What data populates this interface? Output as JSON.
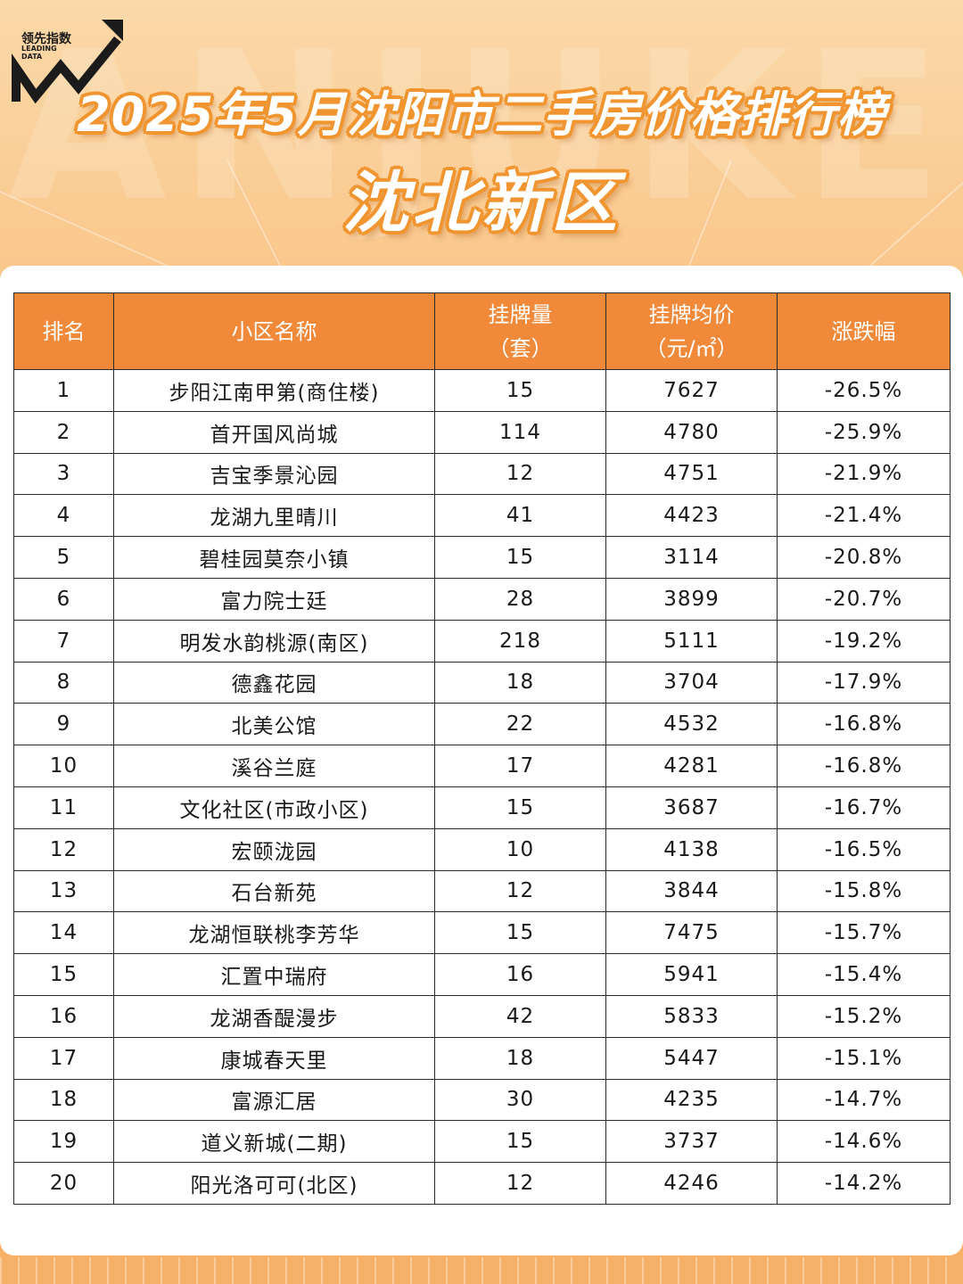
{
  "watermark": "ANJUKE",
  "logo": {
    "cn": "领先指数",
    "en_line1": "LEADING",
    "en_line2": "DATA"
  },
  "title": "2025年5月沈阳市二手房价格排行榜",
  "subtitle": "沈北新区",
  "colors": {
    "header_bg": "#f08a3a",
    "background": "#f8b873",
    "title_outline": "#f0952f"
  },
  "chart_data": {
    "type": "table",
    "columns": [
      "排名",
      "小区名称",
      "挂牌量（套）",
      "挂牌均价（元/㎡）",
      "涨跌幅"
    ],
    "header": {
      "rank": "排名",
      "name": "小区名称",
      "count_line1": "挂牌量",
      "count_line2": "（套）",
      "price_line1": "挂牌均价",
      "price_line2": "（元/㎡）",
      "change": "涨跌幅"
    },
    "rows": [
      [
        "1",
        "步阳江南甲第(商住楼)",
        "15",
        "7627",
        "-26.5%"
      ],
      [
        "2",
        "首开国风尚城",
        "114",
        "4780",
        "-25.9%"
      ],
      [
        "3",
        "吉宝季景沁园",
        "12",
        "4751",
        "-21.9%"
      ],
      [
        "4",
        "龙湖九里晴川",
        "41",
        "4423",
        "-21.4%"
      ],
      [
        "5",
        "碧桂园莫奈小镇",
        "15",
        "3114",
        "-20.8%"
      ],
      [
        "6",
        "富力院士廷",
        "28",
        "3899",
        "-20.7%"
      ],
      [
        "7",
        "明发水韵桃源(南区)",
        "218",
        "5111",
        "-19.2%"
      ],
      [
        "8",
        "德鑫花园",
        "18",
        "3704",
        "-17.9%"
      ],
      [
        "9",
        "北美公馆",
        "22",
        "4532",
        "-16.8%"
      ],
      [
        "10",
        "溪谷兰庭",
        "17",
        "4281",
        "-16.8%"
      ],
      [
        "11",
        "文化社区(市政小区)",
        "15",
        "3687",
        "-16.7%"
      ],
      [
        "12",
        "宏颐泷园",
        "10",
        "4138",
        "-16.5%"
      ],
      [
        "13",
        "石台新苑",
        "12",
        "3844",
        "-15.8%"
      ],
      [
        "14",
        "龙湖恒联桃李芳华",
        "15",
        "7475",
        "-15.7%"
      ],
      [
        "15",
        "汇置中瑞府",
        "16",
        "5941",
        "-15.4%"
      ],
      [
        "16",
        "龙湖香醍漫步",
        "42",
        "5833",
        "-15.2%"
      ],
      [
        "17",
        "康城春天里",
        "18",
        "5447",
        "-15.1%"
      ],
      [
        "18",
        "富源汇居",
        "30",
        "4235",
        "-14.7%"
      ],
      [
        "19",
        "道义新城(二期)",
        "15",
        "3737",
        "-14.6%"
      ],
      [
        "20",
        "阳光洛可可(北区)",
        "12",
        "4246",
        "-14.2%"
      ]
    ]
  }
}
